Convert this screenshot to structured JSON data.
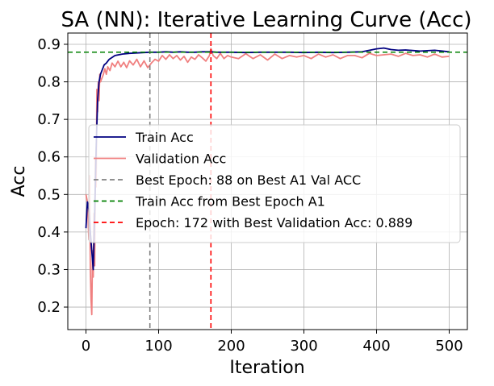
{
  "chart_data": {
    "type": "line",
    "title": "SA (NN): Iterative Learning Curve (Acc)",
    "xlabel": "Iteration",
    "ylabel": "Acc",
    "xlim": [
      -25,
      525
    ],
    "ylim": [
      0.14,
      0.93
    ],
    "xticks": [
      0,
      100,
      200,
      300,
      400,
      500
    ],
    "yticks": [
      0.2,
      0.3,
      0.4,
      0.5,
      0.6,
      0.7,
      0.8,
      0.9
    ],
    "grid": true,
    "legend_position": "center-right",
    "series": [
      {
        "name": "Train Acc",
        "color": "#000080",
        "x": [
          0,
          2,
          4,
          6,
          8,
          10,
          12,
          14,
          16,
          18,
          20,
          22,
          25,
          28,
          32,
          36,
          40,
          45,
          50,
          60,
          70,
          80,
          88,
          100,
          110,
          120,
          130,
          140,
          150,
          160,
          172,
          180,
          200,
          220,
          240,
          260,
          280,
          300,
          320,
          340,
          360,
          380,
          400,
          410,
          420,
          430,
          440,
          460,
          480,
          500
        ],
        "y": [
          0.41,
          0.48,
          0.46,
          0.4,
          0.35,
          0.3,
          0.45,
          0.62,
          0.75,
          0.8,
          0.82,
          0.83,
          0.845,
          0.85,
          0.86,
          0.865,
          0.87,
          0.872,
          0.874,
          0.876,
          0.877,
          0.878,
          0.879,
          0.879,
          0.88,
          0.879,
          0.88,
          0.879,
          0.879,
          0.88,
          0.88,
          0.879,
          0.879,
          0.878,
          0.879,
          0.879,
          0.879,
          0.878,
          0.879,
          0.878,
          0.879,
          0.88,
          0.888,
          0.89,
          0.886,
          0.884,
          0.885,
          0.882,
          0.884,
          0.88
        ]
      },
      {
        "name": "Validation Acc",
        "color": "#f08080",
        "x": [
          0,
          2,
          4,
          5,
          6,
          7,
          8,
          9,
          10,
          11,
          12,
          13,
          14,
          15,
          16,
          17,
          18,
          19,
          20,
          22,
          24,
          26,
          28,
          30,
          33,
          36,
          40,
          44,
          48,
          52,
          56,
          60,
          65,
          70,
          75,
          80,
          85,
          90,
          95,
          100,
          105,
          110,
          115,
          120,
          125,
          130,
          135,
          140,
          145,
          150,
          155,
          160,
          165,
          170,
          172,
          175,
          180,
          185,
          190,
          195,
          200,
          210,
          220,
          230,
          240,
          250,
          260,
          270,
          280,
          290,
          300,
          310,
          320,
          330,
          340,
          350,
          360,
          370,
          380,
          390,
          400,
          410,
          420,
          430,
          440,
          450,
          460,
          470,
          480,
          490,
          500
        ],
        "y": [
          0.5,
          0.48,
          0.38,
          0.55,
          0.3,
          0.22,
          0.18,
          0.35,
          0.28,
          0.45,
          0.31,
          0.6,
          0.52,
          0.78,
          0.72,
          0.8,
          0.75,
          0.82,
          0.8,
          0.81,
          0.82,
          0.835,
          0.82,
          0.84,
          0.83,
          0.85,
          0.84,
          0.855,
          0.84,
          0.852,
          0.838,
          0.856,
          0.845,
          0.86,
          0.84,
          0.856,
          0.838,
          0.85,
          0.86,
          0.855,
          0.87,
          0.86,
          0.872,
          0.862,
          0.87,
          0.858,
          0.868,
          0.852,
          0.866,
          0.86,
          0.872,
          0.864,
          0.855,
          0.87,
          0.889,
          0.87,
          0.862,
          0.876,
          0.862,
          0.87,
          0.866,
          0.862,
          0.875,
          0.862,
          0.872,
          0.858,
          0.874,
          0.862,
          0.87,
          0.866,
          0.87,
          0.862,
          0.874,
          0.866,
          0.872,
          0.862,
          0.87,
          0.87,
          0.864,
          0.876,
          0.87,
          0.872,
          0.874,
          0.868,
          0.876,
          0.87,
          0.872,
          0.866,
          0.874,
          0.866,
          0.868
        ]
      }
    ],
    "reference_lines": [
      {
        "orientation": "vertical",
        "value": 88,
        "color": "#808080",
        "name": "Best Epoch: 88 on Best A1 Val ACC"
      },
      {
        "orientation": "horizontal",
        "value": 0.879,
        "color": "#008000",
        "name": "Train Acc from Best Epoch A1"
      },
      {
        "orientation": "vertical",
        "value": 172,
        "color": "#ff0000",
        "name": "Epoch: 172 with Best Validation Acc: 0.889"
      }
    ]
  }
}
